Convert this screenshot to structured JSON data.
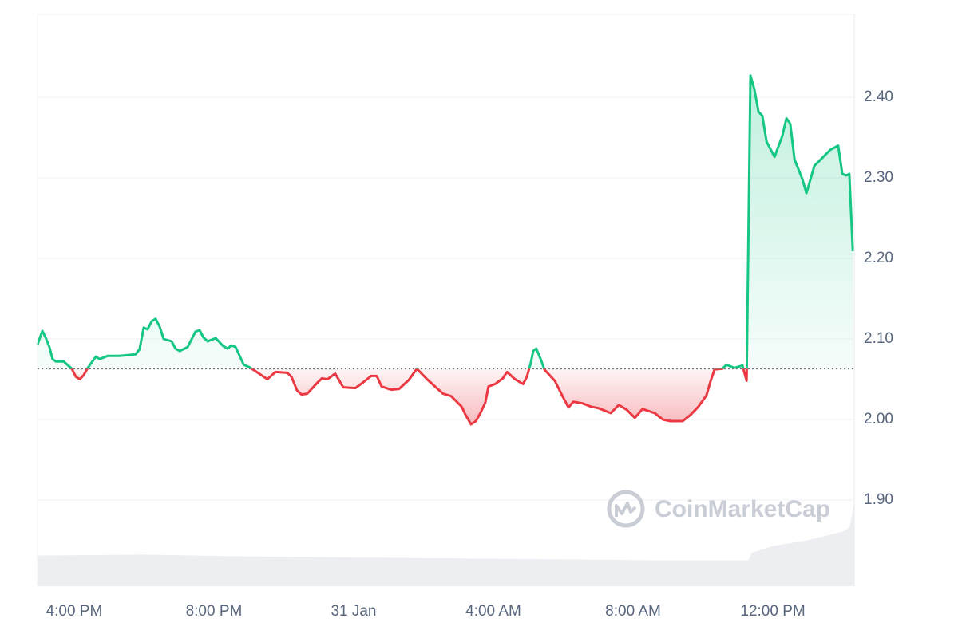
{
  "chart_data": {
    "type": "line",
    "watermark": "CoinMarketCap",
    "xlim": [
      14.95,
      38.33
    ],
    "xticks": [
      {
        "value": 16,
        "label": "4:00 PM"
      },
      {
        "value": 20,
        "label": "8:00 PM"
      },
      {
        "value": 24,
        "label": "31 Jan"
      },
      {
        "value": 28,
        "label": "4:00 AM"
      },
      {
        "value": 32,
        "label": "8:00 AM"
      },
      {
        "value": 36,
        "label": "12:00 PM"
      }
    ],
    "ylim": [
      1.793,
      2.503
    ],
    "yticks": [
      {
        "value": 1.9,
        "label": "1.90"
      },
      {
        "value": 2.0,
        "label": "2.00"
      },
      {
        "value": 2.1,
        "label": "2.10"
      },
      {
        "value": 2.2,
        "label": "2.20"
      },
      {
        "value": 2.3,
        "label": "2.30"
      },
      {
        "value": 2.4,
        "label": "2.40"
      }
    ],
    "grid": true,
    "baseline": 2.063,
    "up_color": "#16c784",
    "down_color": "#ea3943",
    "x": [
      14.95,
      15.09,
      15.2,
      15.29,
      15.38,
      15.47,
      15.7,
      15.93,
      16.05,
      16.16,
      16.27,
      16.39,
      16.62,
      16.73,
      16.96,
      17.3,
      17.76,
      17.87,
      17.99,
      18.1,
      18.22,
      18.33,
      18.45,
      18.56,
      18.79,
      18.9,
      19.02,
      19.25,
      19.47,
      19.59,
      19.7,
      19.82,
      20.05,
      20.27,
      20.39,
      20.5,
      20.62,
      20.85,
      21.01,
      21.19,
      21.53,
      21.76,
      22.1,
      22.22,
      22.38,
      22.51,
      22.67,
      22.97,
      23.09,
      23.25,
      23.47,
      23.7,
      24.05,
      24.27,
      24.5,
      24.66,
      24.8,
      25.07,
      25.3,
      25.58,
      25.81,
      26.1,
      26.33,
      26.56,
      26.79,
      27.09,
      27.2,
      27.36,
      27.5,
      27.63,
      27.77,
      27.86,
      28.05,
      28.27,
      28.39,
      28.62,
      28.85,
      28.96,
      29.07,
      29.14,
      29.23,
      29.37,
      29.46,
      29.76,
      29.99,
      30.15,
      30.29,
      30.56,
      30.79,
      31.02,
      31.36,
      31.59,
      31.82,
      32.05,
      32.27,
      32.62,
      32.85,
      33.07,
      33.42,
      33.65,
      33.87,
      34.1,
      34.22,
      34.33,
      34.56,
      34.67,
      34.9,
      35.13,
      35.25,
      35.36,
      35.47,
      35.59,
      35.7,
      35.82,
      36.05,
      36.27,
      36.39,
      36.5,
      36.62,
      36.85,
      36.96,
      37.19,
      37.42,
      37.65,
      37.87,
      37.99,
      38.1,
      38.19,
      38.29
    ],
    "values": [
      2.093,
      2.11,
      2.1,
      2.09,
      2.075,
      2.072,
      2.072,
      2.063,
      2.053,
      2.05,
      2.055,
      2.064,
      2.078,
      2.075,
      2.079,
      2.079,
      2.081,
      2.087,
      2.114,
      2.112,
      2.122,
      2.125,
      2.115,
      2.1,
      2.097,
      2.088,
      2.085,
      2.09,
      2.109,
      2.111,
      2.102,
      2.097,
      2.101,
      2.091,
      2.088,
      2.092,
      2.09,
      2.068,
      2.065,
      2.06,
      2.05,
      2.059,
      2.058,
      2.053,
      2.036,
      2.031,
      2.032,
      2.046,
      2.051,
      2.05,
      2.057,
      2.04,
      2.039,
      2.046,
      2.054,
      2.054,
      2.041,
      2.037,
      2.038,
      2.049,
      2.063,
      2.05,
      2.041,
      2.032,
      2.029,
      2.016,
      2.006,
      1.994,
      1.998,
      2.008,
      2.021,
      2.041,
      2.044,
      2.051,
      2.059,
      2.05,
      2.044,
      2.053,
      2.07,
      2.085,
      2.088,
      2.073,
      2.062,
      2.048,
      2.028,
      2.015,
      2.022,
      2.02,
      2.016,
      2.014,
      2.008,
      2.018,
      2.012,
      2.002,
      2.013,
      2.008,
      2.0,
      1.998,
      1.998,
      2.006,
      2.016,
      2.03,
      2.048,
      2.062,
      2.063,
      2.068,
      2.064,
      2.067,
      2.048,
      2.427,
      2.41,
      2.382,
      2.377,
      2.345,
      2.326,
      2.352,
      2.374,
      2.367,
      2.323,
      2.298,
      2.281,
      2.315,
      2.325,
      2.335,
      2.34,
      2.305,
      2.303,
      2.305,
      2.209
    ],
    "volume": {
      "color": "#eceef1",
      "ylim": [
        0,
        100
      ],
      "x": [
        14.95,
        18,
        21,
        24,
        27,
        30,
        33,
        35.3,
        35.4,
        36,
        37,
        38,
        38.2,
        38.33
      ],
      "values": [
        32,
        33,
        31,
        30,
        29,
        28,
        27,
        27,
        35,
        42,
        48,
        57,
        62,
        87
      ]
    }
  }
}
